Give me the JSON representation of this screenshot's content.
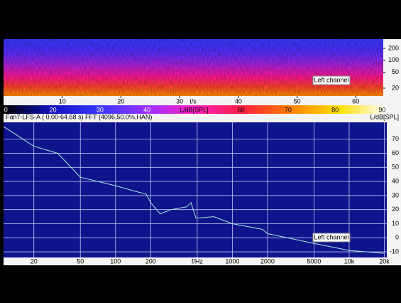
{
  "chart_data": [
    {
      "type": "heatmap",
      "xlim": [
        0,
        64.68
      ],
      "xticks": [
        10,
        20,
        30,
        40,
        50,
        60
      ],
      "xlabel": "t/s",
      "ylim": [
        12.7,
        341
      ],
      "yticks": [
        20,
        50,
        100,
        200
      ],
      "log_y": true,
      "annotation": "Left channel",
      "colorbar": {
        "lim": [
          9.5,
          91
        ],
        "ticks": [
          {
            "value": 10,
            "label": "0"
          },
          20,
          30,
          40,
          {
            "value": 50,
            "label": "L/dB[SPL]"
          },
          60,
          70,
          80,
          90
        ],
        "colormap": [
          "#000000",
          "#1010c0",
          "#3838ff",
          "#9a30ff",
          "#ff20c0",
          "#ff2040",
          "#ff8000",
          "#ffe000",
          "#ffffff"
        ]
      },
      "bands": [
        "#3a3aff",
        "#4a30ff",
        "#7a28f0",
        "#c020d0",
        "#ff1890",
        "#ff4030",
        "#ff9000"
      ]
    },
    {
      "type": "line",
      "title": "Fan7-LFS-A ( 0.00-64.68 s) FFT (4096,50.0%,HAN)",
      "ylabel": "L/dB[SPL]",
      "log_x": true,
      "grid": true,
      "xlim": [
        11,
        21000
      ],
      "ylim": [
        -14,
        82
      ],
      "xticks": [
        20,
        50,
        100,
        200,
        {
          "value": 500,
          "label": "f/Hz"
        },
        1000,
        2000,
        5000,
        {
          "value": 10000,
          "label": "10k"
        },
        {
          "value": 20000,
          "label": "20k"
        }
      ],
      "yticks": [
        -10,
        0,
        10,
        20,
        30,
        40,
        50,
        60,
        70
      ],
      "x": [
        11,
        20,
        32,
        50,
        100,
        148,
        183,
        200,
        241,
        298,
        407,
        442,
        488,
        695,
        1000,
        1800,
        2000,
        5000,
        10000,
        20000
      ],
      "values": [
        79,
        65,
        60,
        43,
        37,
        33,
        31,
        25,
        17,
        20,
        22,
        25,
        14,
        15,
        10,
        6,
        3,
        -4,
        -9,
        -11
      ],
      "color": "#a8e8e0",
      "background": "#10148c",
      "annotation": "Left channel"
    }
  ]
}
